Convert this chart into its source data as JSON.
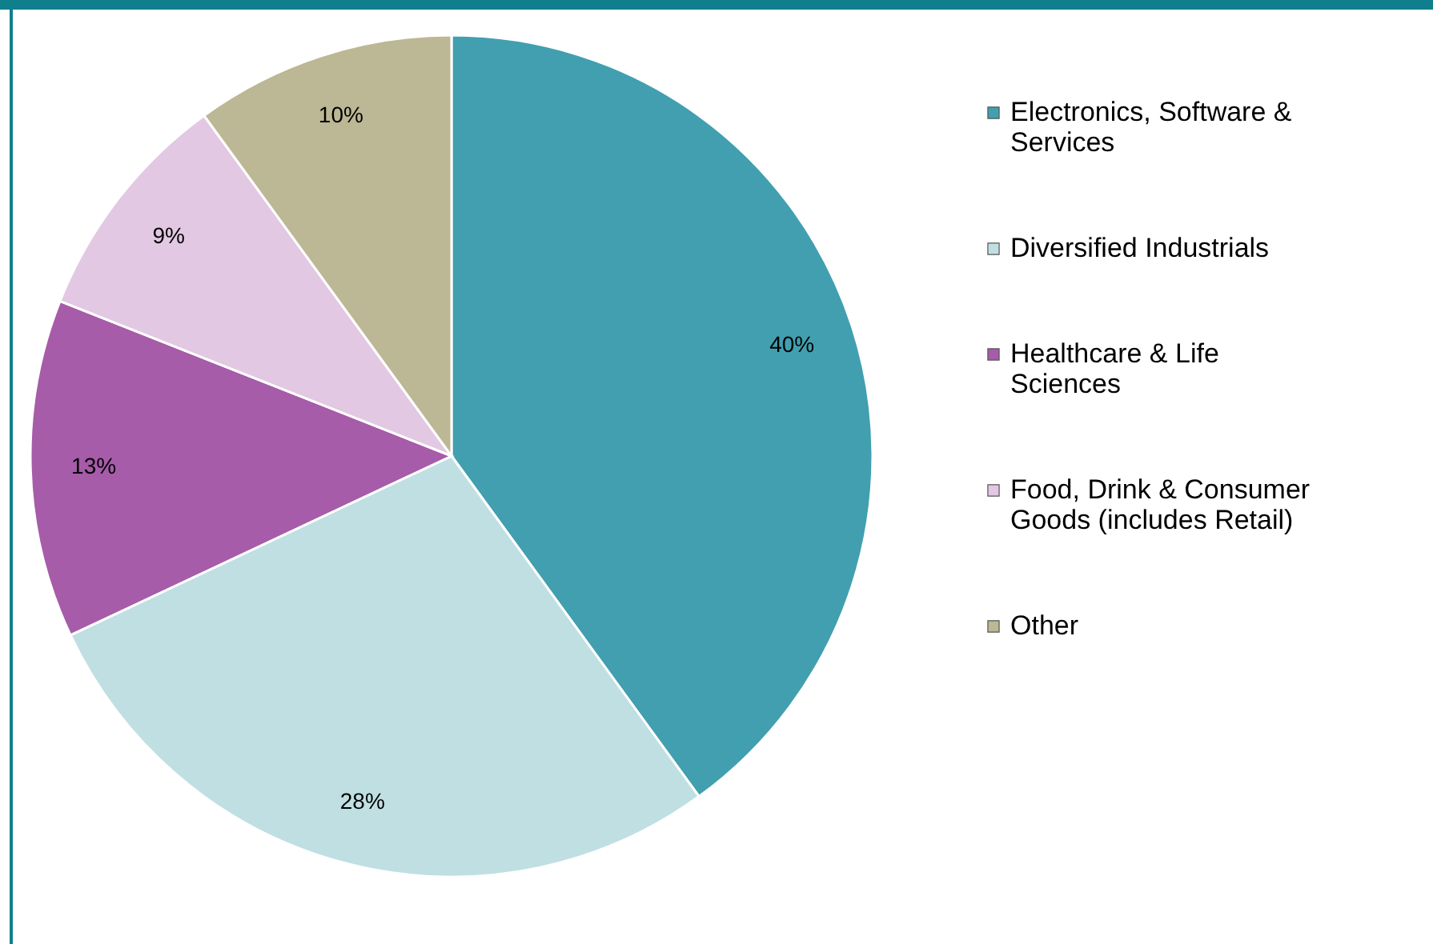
{
  "chart_data": {
    "type": "pie",
    "categories": [
      "Electronics, Software & Services",
      "Diversified Industrials",
      "Healthcare & Life Sciences",
      "Food, Drink & Consumer Goods (includes Retail)",
      "Other"
    ],
    "values": [
      40,
      28,
      13,
      9,
      10
    ],
    "colors": [
      "#419fb0",
      "#c0dfe3",
      "#a65ca9",
      "#e2c8e3",
      "#bcb794"
    ],
    "value_labels": [
      "40%",
      "28%",
      "13%",
      "9%",
      "10%"
    ],
    "legend": "right"
  }
}
